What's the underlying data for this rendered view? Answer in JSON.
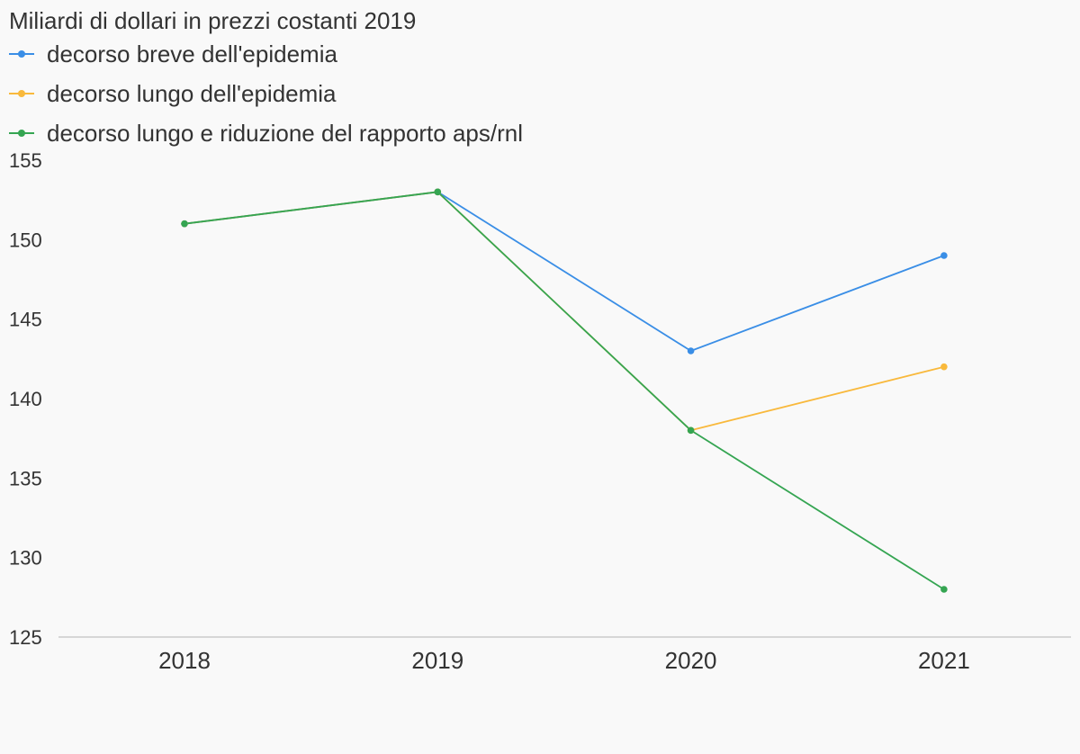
{
  "chart_data": {
    "type": "line",
    "title": "Miliardi di dollari in prezzi costanti 2019",
    "xlabel": "",
    "ylabel": "",
    "categories": [
      "2018",
      "2019",
      "2020",
      "2021"
    ],
    "yticks": [
      125,
      130,
      135,
      140,
      145,
      150,
      155
    ],
    "ylim": [
      125,
      155
    ],
    "grid": false,
    "legend_position": "top-left",
    "series": [
      {
        "name": "decorso breve dell'epidemia",
        "color": "#3a8ee6",
        "values": [
          151,
          153,
          143,
          149
        ]
      },
      {
        "name": "decorso lungo dell'epidemia",
        "color": "#f9b93c",
        "values": [
          151,
          153,
          138,
          142
        ]
      },
      {
        "name": "decorso lungo e riduzione del rapporto aps/rnl",
        "color": "#35a552",
        "values": [
          151,
          153,
          138,
          128
        ]
      }
    ]
  }
}
